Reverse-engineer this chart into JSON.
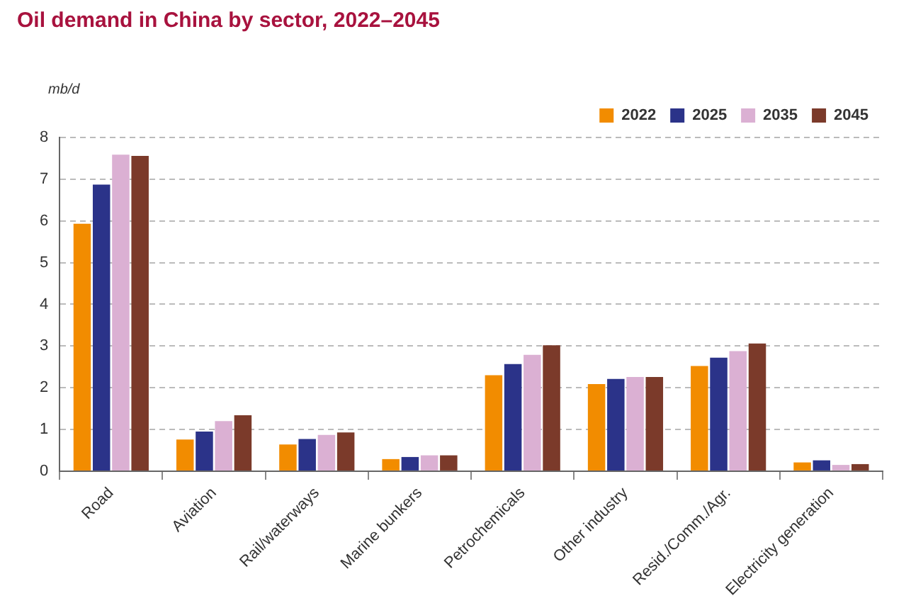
{
  "chart_data": {
    "type": "bar",
    "title": "Oil demand in China by sector, 2022–2045",
    "ylabel": "mb/d",
    "categories": [
      "Road",
      "Aviation",
      "Rail/waterways",
      "Marine bunkers",
      "Petrochemicals",
      "Other industry",
      "Resid./Comm./Agr.",
      "Electricity generation"
    ],
    "series": [
      {
        "name": "2022",
        "color": "#f28c00",
        "values": [
          5.93,
          0.76,
          0.64,
          0.29,
          2.3,
          2.09,
          2.52,
          0.21
        ]
      },
      {
        "name": "2025",
        "color": "#2b3389",
        "values": [
          6.87,
          0.95,
          0.77,
          0.34,
          2.57,
          2.21,
          2.72,
          0.26
        ]
      },
      {
        "name": "2035",
        "color": "#dbb0d3",
        "values": [
          7.59,
          1.2,
          0.87,
          0.38,
          2.79,
          2.26,
          2.88,
          0.15
        ]
      },
      {
        "name": "2045",
        "color": "#7b3a2a",
        "values": [
          7.56,
          1.34,
          0.93,
          0.38,
          3.02,
          2.26,
          3.06,
          0.17
        ]
      }
    ],
    "ylim": [
      0,
      8
    ],
    "yticks": [
      0,
      1,
      2,
      3,
      4,
      5,
      6,
      7,
      8
    ],
    "grid": "y",
    "legend": "top right"
  }
}
